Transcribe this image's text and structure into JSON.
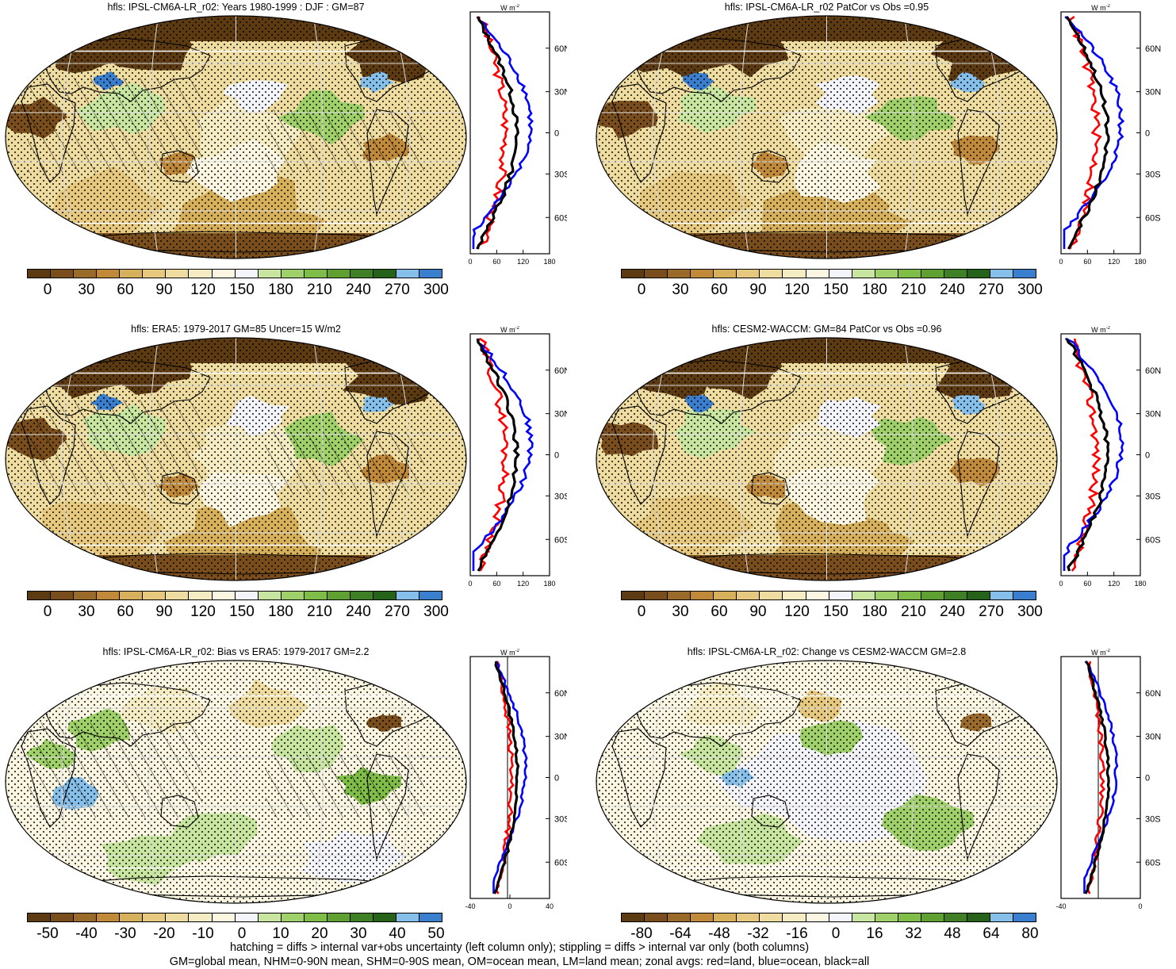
{
  "panels": [
    {
      "title": "hfls: IPSL-CM6A-LR_r02: Years 1980-1999 : DJF : GM=87",
      "kind": "clim",
      "hatch": true
    },
    {
      "title": "hfls: IPSL-CM6A-LR_r02 PatCor vs Obs =0.95",
      "kind": "clim",
      "hatch": false
    },
    {
      "title": "hfls: ERA5: 1979-2017 GM=85 Uncer=15 W/m2",
      "kind": "clim",
      "hatch": true
    },
    {
      "title": "hfls: CESM2-WACCM: GM=84 PatCor vs Obs =0.96",
      "kind": "clim",
      "hatch": false
    },
    {
      "title": "hfls: IPSL-CM6A-LR_r02: Bias vs ERA5: 1979-2017 GM=2.2",
      "kind": "bias",
      "hatch": true
    },
    {
      "title": "hfls: IPSL-CM6A-LR_r02: Change vs CESM2-WACCM GM=2.8",
      "kind": "change",
      "hatch": false
    }
  ],
  "units_label": "W m",
  "units_exp": "-2",
  "lat_labels": [
    "60N",
    "30N",
    "0",
    "30S",
    "60S"
  ],
  "colorbars": {
    "clim": {
      "labels": [
        "0",
        "30",
        "60",
        "90",
        "120",
        "150",
        "180",
        "210",
        "240",
        "270",
        "300"
      ],
      "colors": [
        "#5c3a12",
        "#7a4e1c",
        "#9a6a2a",
        "#c08a3a",
        "#d6b05a",
        "#e6c87e",
        "#efdca0",
        "#f6ecc4",
        "#fbf6e2",
        "#f4f4fb",
        "#c8e6a0",
        "#9fd06a",
        "#7fbc48",
        "#5fa033",
        "#3f7f25",
        "#27621a",
        "#86c0ea",
        "#3a7fcf"
      ],
      "zonal_ticks": [
        "0",
        "60",
        "120",
        "180"
      ]
    },
    "bias": {
      "labels": [
        "-50",
        "-40",
        "-30",
        "-20",
        "-10",
        "0",
        "10",
        "20",
        "30",
        "40",
        "50"
      ],
      "colors": [
        "#5c3a12",
        "#7a4e1c",
        "#9a6a2a",
        "#c08a3a",
        "#d6b05a",
        "#e6c87e",
        "#efdca0",
        "#f6ecc4",
        "#fbf6e2",
        "#f4f4fb",
        "#c8e6a0",
        "#9fd06a",
        "#7fbc48",
        "#5fa033",
        "#3f7f25",
        "#27621a",
        "#86c0ea",
        "#3a7fcf"
      ],
      "zonal_ticks": [
        "-40",
        "0",
        "40"
      ]
    },
    "change": {
      "labels": [
        "-80",
        "-64",
        "-48",
        "-32",
        "-16",
        "0",
        "16",
        "32",
        "48",
        "64",
        "80"
      ],
      "colors": [
        "#5c3a12",
        "#7a4e1c",
        "#9a6a2a",
        "#c08a3a",
        "#d6b05a",
        "#e6c87e",
        "#efdca0",
        "#f6ecc4",
        "#fbf6e2",
        "#f4f4fb",
        "#c8e6a0",
        "#9fd06a",
        "#7fbc48",
        "#5fa033",
        "#3f7f25",
        "#27621a",
        "#86c0ea",
        "#3a7fcf"
      ],
      "zonal_ticks": [
        "-40",
        "0"
      ]
    }
  },
  "zonal_colors": {
    "land": "#ff0000",
    "ocean": "#0000ff",
    "all": "#000000"
  },
  "footer": {
    "line1": "hatching = diffs > internal var+obs uncertainty (left column only); stippling = diffs > internal var only (both columns)",
    "line2": "GM=global mean, NHM=0-90N mean, SHM=0-90S mean, OM=ocean mean, LM=land mean; zonal avgs: red=land, blue=ocean, black=all"
  }
}
